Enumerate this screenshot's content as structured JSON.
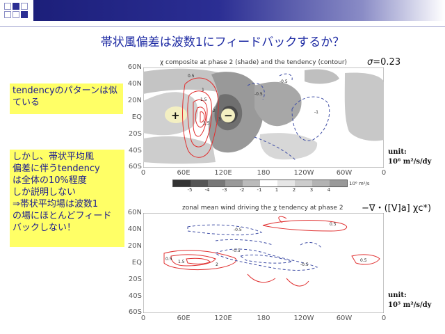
{
  "slide": {
    "title": "帯状風偏差は波数1にフィードバックするか？",
    "sigma": {
      "symbol": "σ",
      "value": "=0.23"
    },
    "note1": "tendencyのパターンは似ている",
    "note2_lines": [
      "しかし、帯状平均風",
      "偏差に伴うtendency",
      "は全体の10%程度",
      "しか説明しない",
      "⇒帯状平均場は波数1",
      "の場にほとんどフィード",
      "バックしない！"
    ],
    "formula": "−∇・([V]a] χc*)"
  },
  "plot1": {
    "title": "χ composite at phase 2 (shade) and the tendency (contour)",
    "lat_labels": [
      "60N",
      "40N",
      "20N",
      "EQ",
      "20S",
      "40S",
      "60S"
    ],
    "lon_labels": [
      "0",
      "60E",
      "120E",
      "180",
      "120W",
      "60W",
      "0"
    ],
    "unit_lines": [
      "unit:",
      "10⁶ m²/s/dy"
    ],
    "plus": "+",
    "minus": "−",
    "contour_labels": [
      "0.5",
      "1",
      "1.5",
      "2",
      "2.5",
      "3",
      "-0.5",
      "-1",
      "-0.5"
    ],
    "colorbar": {
      "ticks": [
        "-5",
        "-4",
        "-3",
        "-2",
        "-1",
        "1",
        "2",
        "3",
        "4"
      ],
      "unit": "10⁶ m²/s",
      "colors": [
        "#333333",
        "#555555",
        "#777777",
        "#999999",
        "#bbbbbb",
        "#ffffff",
        "#e6e6e6",
        "#cccccc",
        "#b3b3b3",
        "#999999"
      ]
    }
  },
  "plot2": {
    "title": "zonal mean wind driving the χ tendency at phase 2",
    "lat_labels": [
      "60N",
      "40N",
      "20N",
      "EQ",
      "20S",
      "40S",
      "60S"
    ],
    "lon_labels": [
      "0",
      "60E",
      "120E",
      "180",
      "120W",
      "60W",
      "0"
    ],
    "unit_lines": [
      "unit:",
      "10⁵ m²/s/dy"
    ],
    "contour_labels": [
      "0.5",
      "-0.5",
      "0.5",
      "1.5",
      "2",
      "-0.5",
      "0.5",
      "-0.5"
    ]
  }
}
